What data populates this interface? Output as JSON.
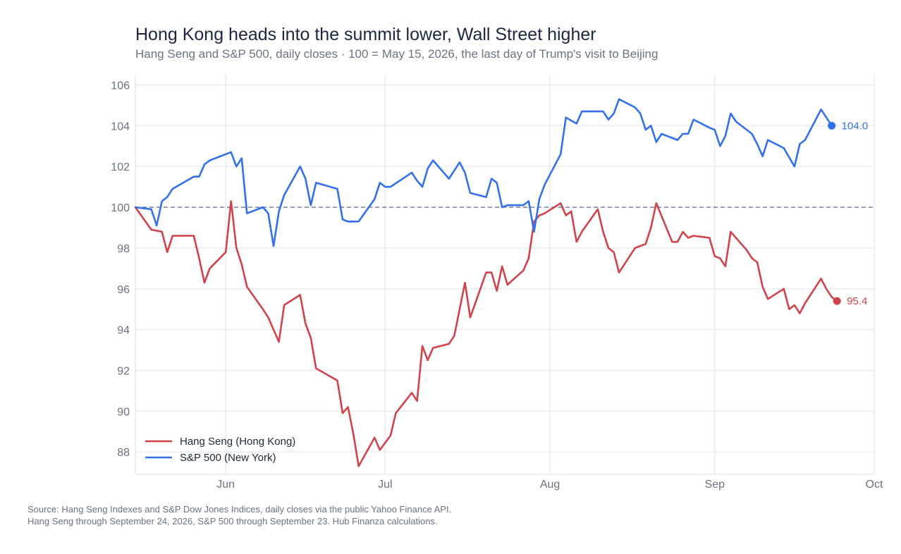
{
  "title": "Hong Kong heads into the summit lower, Wall Street higher",
  "subtitle": "Hang Seng and S&P 500, daily closes · 100 = May 15, 2026, the last day of Trump's visit to Beijing",
  "source_line_1": "Source: Hang Seng Indexes and S&P Dow Jones Indices, daily closes via the public Yahoo Finance API.",
  "source_line_2": "Hang Seng through September 24, 2026, S&P 500 through September 23. Hub Finanza calculations.",
  "chart_data": {
    "type": "line",
    "title": "Hong Kong heads into the summit lower, Wall Street higher",
    "subtitle": "Hang Seng and S&P 500, daily closes · 100 = May 15, 2026, the last day of Trump's visit to Beijing",
    "xlabel": "",
    "ylabel": "",
    "xlim": [
      "2026-05-15",
      "2026-10-01"
    ],
    "ylim": [
      86.9,
      106.5
    ],
    "x_ticks": [
      {
        "date": "2026-06-01",
        "label": "Jun"
      },
      {
        "date": "2026-07-01",
        "label": "Jul"
      },
      {
        "date": "2026-08-01",
        "label": "Aug"
      },
      {
        "date": "2026-09-01",
        "label": "Sep"
      },
      {
        "date": "2026-10-01",
        "label": "Oct"
      }
    ],
    "y_ticks": [
      88,
      90,
      92,
      94,
      96,
      98,
      100,
      102,
      104,
      106
    ],
    "reference_line": 100,
    "grid": true,
    "legend_position": "bottom-left",
    "series": [
      {
        "name": "Hang Seng (Hong Kong)",
        "color": "#d1434b",
        "end_label": "95.4",
        "points": [
          [
            "2026-05-15",
            100.0
          ],
          [
            "2026-05-18",
            98.9
          ],
          [
            "2026-05-20",
            98.8
          ],
          [
            "2026-05-21",
            97.8
          ],
          [
            "2026-05-22",
            98.6
          ],
          [
            "2026-05-26",
            98.6
          ],
          [
            "2026-05-27",
            97.5
          ],
          [
            "2026-05-28",
            96.3
          ],
          [
            "2026-05-29",
            97.0
          ],
          [
            "2026-06-01",
            97.8
          ],
          [
            "2026-06-02",
            100.3
          ],
          [
            "2026-06-03",
            98.0
          ],
          [
            "2026-06-04",
            97.2
          ],
          [
            "2026-06-05",
            96.1
          ],
          [
            "2026-06-08",
            95.0
          ],
          [
            "2026-06-09",
            94.6
          ],
          [
            "2026-06-10",
            94.0
          ],
          [
            "2026-06-11",
            93.4
          ],
          [
            "2026-06-12",
            95.2
          ],
          [
            "2026-06-15",
            95.7
          ],
          [
            "2026-06-16",
            94.3
          ],
          [
            "2026-06-17",
            93.6
          ],
          [
            "2026-06-18",
            92.1
          ],
          [
            "2026-06-22",
            91.5
          ],
          [
            "2026-06-23",
            89.9
          ],
          [
            "2026-06-24",
            90.2
          ],
          [
            "2026-06-25",
            88.9
          ],
          [
            "2026-06-26",
            87.3
          ],
          [
            "2026-06-29",
            88.7
          ],
          [
            "2026-06-30",
            88.1
          ],
          [
            "2026-07-02",
            88.8
          ],
          [
            "2026-07-03",
            89.9
          ],
          [
            "2026-07-06",
            90.9
          ],
          [
            "2026-07-07",
            90.5
          ],
          [
            "2026-07-08",
            93.2
          ],
          [
            "2026-07-09",
            92.5
          ],
          [
            "2026-07-10",
            93.1
          ],
          [
            "2026-07-13",
            93.3
          ],
          [
            "2026-07-14",
            93.7
          ],
          [
            "2026-07-16",
            96.3
          ],
          [
            "2026-07-17",
            94.6
          ],
          [
            "2026-07-20",
            96.8
          ],
          [
            "2026-07-21",
            96.8
          ],
          [
            "2026-07-22",
            95.9
          ],
          [
            "2026-07-23",
            97.1
          ],
          [
            "2026-07-24",
            96.2
          ],
          [
            "2026-07-27",
            96.9
          ],
          [
            "2026-07-28",
            97.5
          ],
          [
            "2026-07-29",
            99.3
          ],
          [
            "2026-07-30",
            99.6
          ],
          [
            "2026-07-31",
            99.7
          ],
          [
            "2026-08-03",
            100.2
          ],
          [
            "2026-08-04",
            99.6
          ],
          [
            "2026-08-05",
            99.8
          ],
          [
            "2026-08-06",
            98.3
          ],
          [
            "2026-08-07",
            98.8
          ],
          [
            "2026-08-10",
            99.9
          ],
          [
            "2026-08-11",
            98.8
          ],
          [
            "2026-08-12",
            98.0
          ],
          [
            "2026-08-13",
            97.8
          ],
          [
            "2026-08-14",
            96.8
          ],
          [
            "2026-08-17",
            98.0
          ],
          [
            "2026-08-19",
            98.2
          ],
          [
            "2026-08-20",
            99.0
          ],
          [
            "2026-08-21",
            100.2
          ],
          [
            "2026-08-24",
            98.3
          ],
          [
            "2026-08-25",
            98.3
          ],
          [
            "2026-08-26",
            98.8
          ],
          [
            "2026-08-27",
            98.5
          ],
          [
            "2026-08-28",
            98.6
          ],
          [
            "2026-08-31",
            98.5
          ],
          [
            "2026-09-01",
            97.6
          ],
          [
            "2026-09-02",
            97.5
          ],
          [
            "2026-09-03",
            97.1
          ],
          [
            "2026-09-04",
            98.8
          ],
          [
            "2026-09-07",
            97.9
          ],
          [
            "2026-09-08",
            97.5
          ],
          [
            "2026-09-09",
            97.3
          ],
          [
            "2026-09-10",
            96.1
          ],
          [
            "2026-09-11",
            95.5
          ],
          [
            "2026-09-14",
            96.0
          ],
          [
            "2026-09-15",
            95.0
          ],
          [
            "2026-09-16",
            95.2
          ],
          [
            "2026-09-17",
            94.8
          ],
          [
            "2026-09-18",
            95.3
          ],
          [
            "2026-09-21",
            96.5
          ],
          [
            "2026-09-22",
            96.0
          ],
          [
            "2026-09-23",
            95.6
          ],
          [
            "2026-09-24",
            95.4
          ]
        ]
      },
      {
        "name": "S&P 500 (New York)",
        "color": "#3370eb",
        "end_label": "104.0",
        "points": [
          [
            "2026-05-15",
            100.0
          ],
          [
            "2026-05-18",
            99.9
          ],
          [
            "2026-05-19",
            99.1
          ],
          [
            "2026-05-20",
            100.3
          ],
          [
            "2026-05-21",
            100.5
          ],
          [
            "2026-05-22",
            100.9
          ],
          [
            "2026-05-26",
            101.5
          ],
          [
            "2026-05-27",
            101.5
          ],
          [
            "2026-05-28",
            102.1
          ],
          [
            "2026-05-29",
            102.3
          ],
          [
            "2026-06-01",
            102.6
          ],
          [
            "2026-06-02",
            102.7
          ],
          [
            "2026-06-03",
            102.0
          ],
          [
            "2026-06-04",
            102.4
          ],
          [
            "2026-06-05",
            99.7
          ],
          [
            "2026-06-08",
            100.0
          ],
          [
            "2026-06-09",
            99.7
          ],
          [
            "2026-06-10",
            98.1
          ],
          [
            "2026-06-11",
            99.8
          ],
          [
            "2026-06-12",
            100.6
          ],
          [
            "2026-06-15",
            102.0
          ],
          [
            "2026-06-16",
            101.4
          ],
          [
            "2026-06-17",
            100.1
          ],
          [
            "2026-06-18",
            101.2
          ],
          [
            "2026-06-22",
            100.9
          ],
          [
            "2026-06-23",
            99.4
          ],
          [
            "2026-06-24",
            99.3
          ],
          [
            "2026-06-26",
            99.3
          ],
          [
            "2026-06-29",
            100.4
          ],
          [
            "2026-06-30",
            101.2
          ],
          [
            "2026-07-01",
            101.0
          ],
          [
            "2026-07-02",
            101.0
          ],
          [
            "2026-07-06",
            101.7
          ],
          [
            "2026-07-07",
            101.3
          ],
          [
            "2026-07-08",
            101.0
          ],
          [
            "2026-07-09",
            101.9
          ],
          [
            "2026-07-10",
            102.3
          ],
          [
            "2026-07-13",
            101.4
          ],
          [
            "2026-07-15",
            102.2
          ],
          [
            "2026-07-16",
            101.7
          ],
          [
            "2026-07-17",
            100.7
          ],
          [
            "2026-07-20",
            100.5
          ],
          [
            "2026-07-21",
            101.4
          ],
          [
            "2026-07-22",
            101.2
          ],
          [
            "2026-07-23",
            100.0
          ],
          [
            "2026-07-24",
            100.1
          ],
          [
            "2026-07-27",
            100.1
          ],
          [
            "2026-07-28",
            100.3
          ],
          [
            "2026-07-29",
            98.8
          ],
          [
            "2026-07-30",
            100.4
          ],
          [
            "2026-07-31",
            101.1
          ],
          [
            "2026-08-03",
            102.6
          ],
          [
            "2026-08-04",
            104.4
          ],
          [
            "2026-08-06",
            104.1
          ],
          [
            "2026-08-07",
            104.7
          ],
          [
            "2026-08-10",
            104.7
          ],
          [
            "2026-08-11",
            104.7
          ],
          [
            "2026-08-12",
            104.3
          ],
          [
            "2026-08-13",
            104.6
          ],
          [
            "2026-08-14",
            105.3
          ],
          [
            "2026-08-17",
            104.9
          ],
          [
            "2026-08-18",
            104.6
          ],
          [
            "2026-08-19",
            103.8
          ],
          [
            "2026-08-20",
            104.0
          ],
          [
            "2026-08-21",
            103.2
          ],
          [
            "2026-08-22",
            103.6
          ],
          [
            "2026-08-25",
            103.3
          ],
          [
            "2026-08-26",
            103.6
          ],
          [
            "2026-08-27",
            103.6
          ],
          [
            "2026-08-28",
            104.3
          ],
          [
            "2026-08-31",
            103.9
          ],
          [
            "2026-09-01",
            103.8
          ],
          [
            "2026-09-02",
            103.0
          ],
          [
            "2026-09-03",
            103.5
          ],
          [
            "2026-09-04",
            104.6
          ],
          [
            "2026-09-05",
            104.2
          ],
          [
            "2026-09-08",
            103.6
          ],
          [
            "2026-09-09",
            103.1
          ],
          [
            "2026-09-10",
            102.5
          ],
          [
            "2026-09-11",
            103.3
          ],
          [
            "2026-09-14",
            102.9
          ],
          [
            "2026-09-16",
            102.0
          ],
          [
            "2026-09-17",
            103.1
          ],
          [
            "2026-09-18",
            103.3
          ],
          [
            "2026-09-21",
            104.8
          ],
          [
            "2026-09-23",
            104.0
          ]
        ]
      }
    ]
  }
}
